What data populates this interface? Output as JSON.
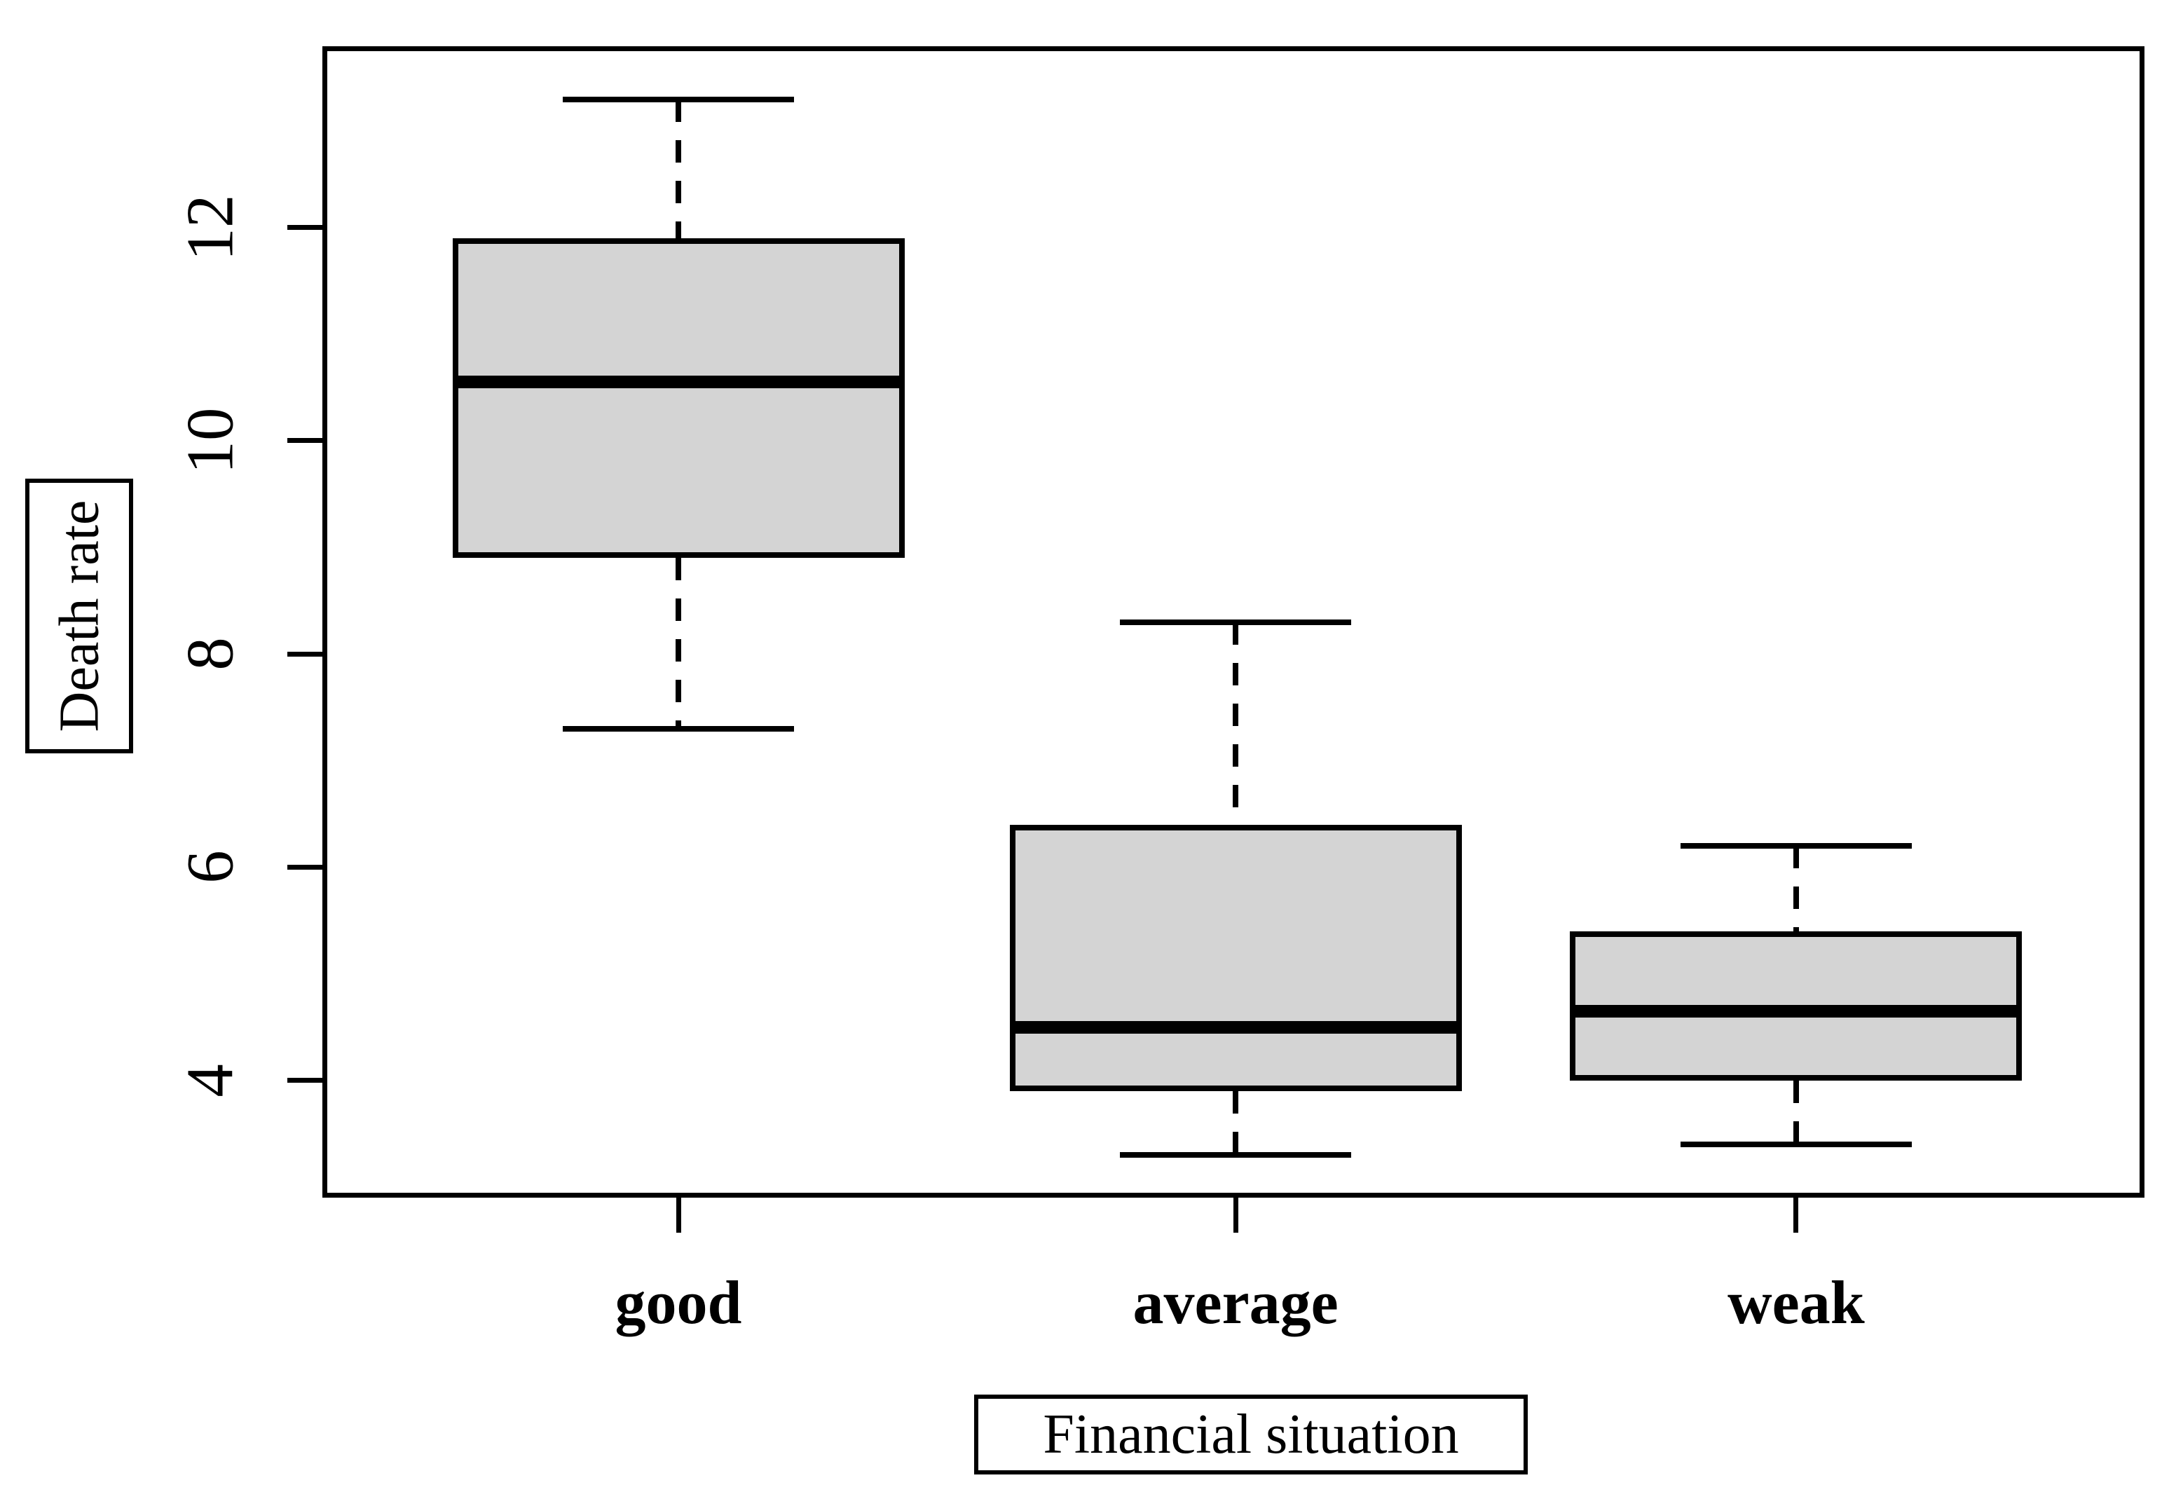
{
  "figure": {
    "background": "#ffffff"
  },
  "chart_data": {
    "type": "boxplot",
    "title": "",
    "xlabel": "Financial situation",
    "ylabel": "Death rate",
    "categories": [
      "good",
      "average",
      "weak"
    ],
    "series": [
      {
        "name": "good",
        "min": 7.3,
        "q1": 8.9,
        "median": 10.55,
        "q3": 11.9,
        "max": 13.2
      },
      {
        "name": "average",
        "min": 3.3,
        "q1": 3.9,
        "median": 4.5,
        "q3": 6.4,
        "max": 8.3
      },
      {
        "name": "weak",
        "min": 3.4,
        "q1": 4.0,
        "median": 4.65,
        "q3": 5.4,
        "max": 6.2
      }
    ],
    "yticks": [
      4,
      6,
      8,
      10,
      12
    ],
    "ylim": [
      2.9,
      13.7
    ],
    "grid": false,
    "legend_position": "none",
    "colors": {
      "box_fill": "#d4d4d4",
      "line": "#000000",
      "background": "#ffffff"
    }
  }
}
